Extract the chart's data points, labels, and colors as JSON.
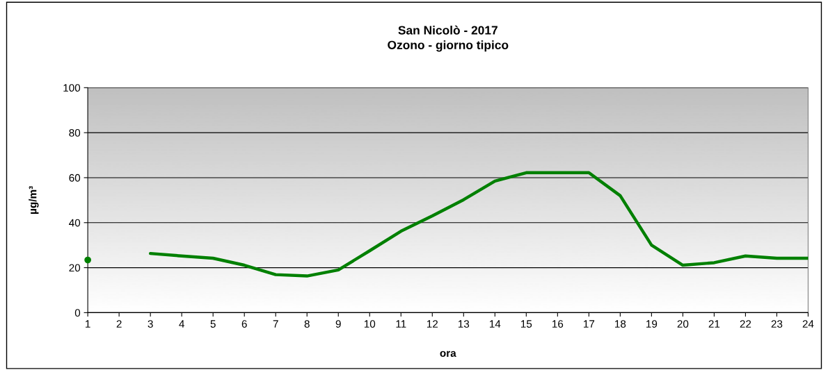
{
  "chart_data": {
    "type": "line",
    "title": "San Nicolò - 2017\nOzono - giorno tipico",
    "xlabel": "ora",
    "ylabel": "µg/m³",
    "x": [
      1,
      2,
      3,
      4,
      5,
      6,
      7,
      8,
      9,
      10,
      11,
      12,
      13,
      14,
      15,
      16,
      17,
      18,
      19,
      20,
      21,
      22,
      23,
      24
    ],
    "series": [
      {
        "color": "#008000",
        "values": [
          23.4,
          null,
          26.3,
          25.2,
          24.2,
          21.1,
          16.9,
          16.3,
          19,
          27.5,
          36.2,
          43,
          50.2,
          58.5,
          62.2,
          62.2,
          62.2,
          52,
          30,
          21.1,
          22.2,
          25.2,
          24.2,
          24.2
        ]
      }
    ],
    "xlim": [
      1,
      24
    ],
    "xticks": [
      1,
      2,
      3,
      4,
      5,
      6,
      7,
      8,
      9,
      10,
      11,
      12,
      13,
      14,
      15,
      16,
      17,
      18,
      19,
      20,
      21,
      22,
      23,
      24
    ],
    "ylim": [
      0,
      100
    ],
    "yticks": [
      0,
      20,
      40,
      60,
      80,
      100
    ],
    "grid": "y",
    "legend": false
  }
}
